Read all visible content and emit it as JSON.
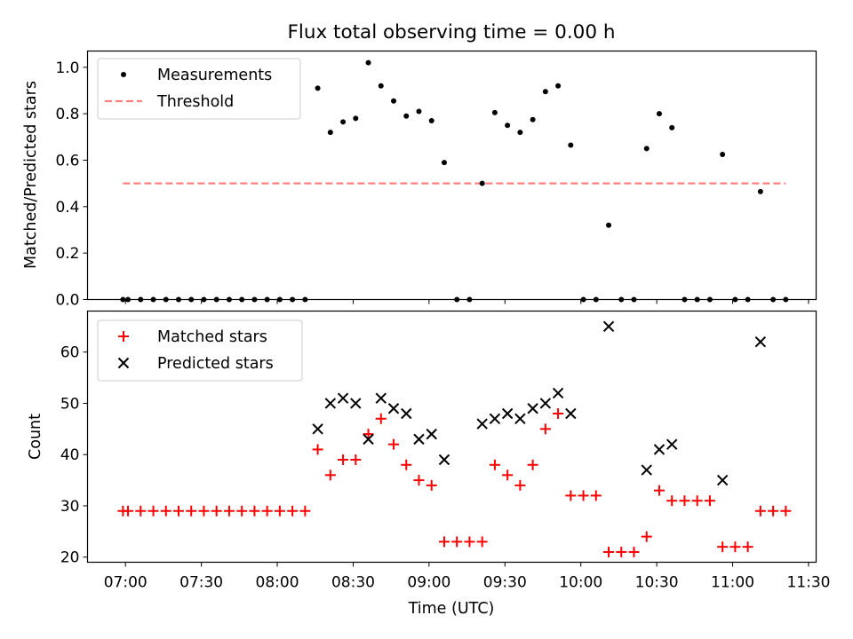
{
  "chart_data": [
    {
      "type": "scatter",
      "title": "Flux total observing time = 0.00 h",
      "xlabel": "",
      "ylabel": "Matched/Predicted stars",
      "ylim": [
        0,
        1.07
      ],
      "yticks": [
        0.0,
        0.2,
        0.4,
        0.6,
        0.8,
        1.0
      ],
      "ytick_labels": [
        "0.0",
        "0.2",
        "0.4",
        "0.6",
        "0.8",
        "1.0"
      ],
      "legend_position": "top-left",
      "series": [
        {
          "name": "Measurements",
          "marker": "dot",
          "color": "#000000",
          "x": [
            "06:59",
            "07:01",
            "07:06",
            "07:11",
            "07:16",
            "07:21",
            "07:26",
            "07:31",
            "07:36",
            "07:41",
            "07:46",
            "07:51",
            "07:56",
            "08:01",
            "08:06",
            "08:11",
            "08:16",
            "08:21",
            "08:26",
            "08:31",
            "08:36",
            "08:41",
            "08:46",
            "08:51",
            "08:56",
            "09:01",
            "09:06",
            "09:11",
            "09:16",
            "09:21",
            "09:26",
            "09:31",
            "09:36",
            "09:41",
            "09:46",
            "09:51",
            "09:56",
            "10:01",
            "10:06",
            "10:11",
            "10:16",
            "10:21",
            "10:26",
            "10:31",
            "10:36",
            "10:41",
            "10:46",
            "10:51",
            "10:56",
            "11:01",
            "11:06",
            "11:11",
            "11:16",
            "11:21"
          ],
          "y": [
            0,
            0,
            0,
            0,
            0,
            0,
            0,
            0,
            0,
            0,
            0,
            0,
            0,
            0,
            0,
            0,
            0.91,
            0.72,
            0.765,
            0.78,
            1.02,
            0.92,
            0.855,
            0.79,
            0.81,
            0.77,
            0.59,
            0,
            0,
            0.5,
            0.805,
            0.75,
            0.72,
            0.775,
            0.895,
            0.92,
            0.665,
            0,
            0,
            0.32,
            0,
            0,
            0.65,
            0.8,
            0.74,
            0,
            0,
            0,
            0.625,
            0,
            0,
            0.465,
            0,
            0
          ]
        },
        {
          "name": "Threshold",
          "style": "dashed",
          "color": "#ff7f7f",
          "x": [
            "06:59",
            "11:21"
          ],
          "y": [
            0.5,
            0.5
          ]
        }
      ]
    },
    {
      "type": "scatter",
      "title": "",
      "xlabel": "Time (UTC)",
      "ylabel": "Count",
      "ylim": [
        19,
        68
      ],
      "yticks": [
        20,
        30,
        40,
        50,
        60
      ],
      "ytick_labels": [
        "20",
        "30",
        "40",
        "50",
        "60"
      ],
      "xlim": [
        "06:45",
        "11:33"
      ],
      "xticks": [
        "07:00",
        "07:30",
        "08:00",
        "08:30",
        "09:00",
        "09:30",
        "10:00",
        "10:30",
        "11:00",
        "11:30"
      ],
      "legend_position": "top-left",
      "series": [
        {
          "name": "Matched stars",
          "marker": "plus",
          "color": "#ff0000",
          "x": [
            "06:59",
            "07:01",
            "07:06",
            "07:11",
            "07:16",
            "07:21",
            "07:26",
            "07:31",
            "07:36",
            "07:41",
            "07:46",
            "07:51",
            "07:56",
            "08:01",
            "08:06",
            "08:11",
            "08:16",
            "08:21",
            "08:26",
            "08:31",
            "08:36",
            "08:41",
            "08:46",
            "08:51",
            "08:56",
            "09:01",
            "09:06",
            "09:11",
            "09:16",
            "09:21",
            "09:26",
            "09:31",
            "09:36",
            "09:41",
            "09:46",
            "09:51",
            "09:56",
            "10:01",
            "10:06",
            "10:11",
            "10:16",
            "10:21",
            "10:26",
            "10:31",
            "10:36",
            "10:41",
            "10:46",
            "10:51",
            "10:56",
            "11:01",
            "11:06",
            "11:11",
            "11:16",
            "11:21"
          ],
          "y": [
            29,
            29,
            29,
            29,
            29,
            29,
            29,
            29,
            29,
            29,
            29,
            29,
            29,
            29,
            29,
            29,
            41,
            36,
            39,
            39,
            44,
            47,
            42,
            38,
            35,
            34,
            23,
            23,
            23,
            23,
            38,
            36,
            34,
            38,
            45,
            48,
            32,
            32,
            32,
            21,
            21,
            21,
            24,
            33,
            31,
            31,
            31,
            31,
            22,
            22,
            22,
            29,
            29,
            29
          ]
        },
        {
          "name": "Predicted stars",
          "marker": "x",
          "color": "#000000",
          "x": [
            "08:16",
            "08:21",
            "08:26",
            "08:31",
            "08:36",
            "08:41",
            "08:46",
            "08:51",
            "08:56",
            "09:01",
            "09:06",
            "09:21",
            "09:26",
            "09:31",
            "09:36",
            "09:41",
            "09:46",
            "09:51",
            "09:56",
            "10:11",
            "10:26",
            "10:31",
            "10:36",
            "10:56",
            "11:11"
          ],
          "y": [
            45,
            50,
            51,
            50,
            43,
            51,
            49,
            48,
            43,
            44,
            39,
            46,
            47,
            48,
            47,
            49,
            50,
            52,
            48,
            65,
            37,
            41,
            42,
            35,
            62
          ]
        }
      ]
    }
  ]
}
